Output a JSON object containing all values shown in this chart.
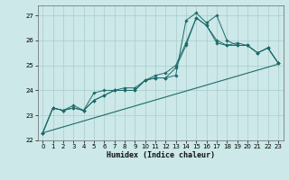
{
  "xlabel": "Humidex (Indice chaleur)",
  "xlim": [
    -0.5,
    23.5
  ],
  "ylim": [
    22,
    27.4
  ],
  "yticks": [
    22,
    23,
    24,
    25,
    26,
    27
  ],
  "xticks": [
    0,
    1,
    2,
    3,
    4,
    5,
    6,
    7,
    8,
    9,
    10,
    11,
    12,
    13,
    14,
    15,
    16,
    17,
    18,
    19,
    20,
    21,
    22,
    23
  ],
  "bg_color": "#cce8e8",
  "grid_color": "#aacccc",
  "line_color": "#1e6b6b",
  "series": [
    [
      22.3,
      23.3,
      23.2,
      23.3,
      23.2,
      23.6,
      23.8,
      24.0,
      24.0,
      24.0,
      24.4,
      24.5,
      24.5,
      24.6,
      26.8,
      27.1,
      26.7,
      27.0,
      26.0,
      25.8,
      25.8,
      25.5,
      25.7,
      25.1
    ],
    [
      22.3,
      23.3,
      23.2,
      23.3,
      23.2,
      23.6,
      23.8,
      24.0,
      24.0,
      24.0,
      24.4,
      24.5,
      24.5,
      24.9,
      25.8,
      26.9,
      26.6,
      25.9,
      25.8,
      25.8,
      25.8,
      25.5,
      25.7,
      25.1
    ],
    [
      22.3,
      23.3,
      23.2,
      23.4,
      23.2,
      23.9,
      24.0,
      24.0,
      24.1,
      24.1,
      24.4,
      24.6,
      24.7,
      25.0,
      25.9,
      26.9,
      26.6,
      26.0,
      25.8,
      25.9,
      25.8,
      25.5,
      25.7,
      25.1
    ]
  ],
  "linear_line_y": [
    22.3,
    25.05
  ],
  "linear_line_x": [
    0,
    23
  ]
}
